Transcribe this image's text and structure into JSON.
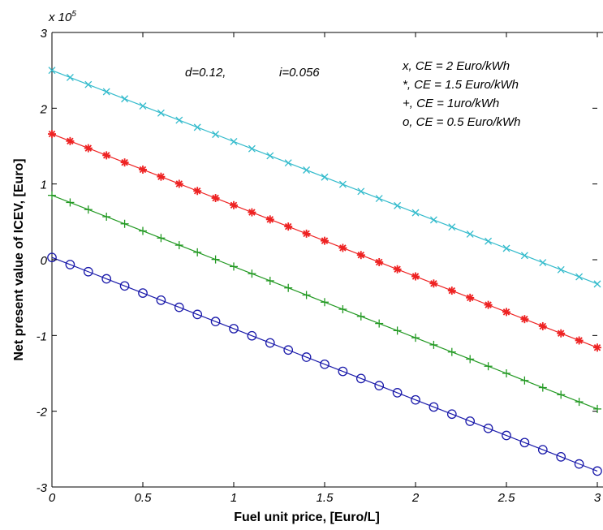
{
  "chart_data": {
    "type": "line",
    "xlabel": "Fuel unit price, [Euro/L]",
    "ylabel": "Net present value of ICEV, [Euro]",
    "xlim": [
      0,
      3
    ],
    "ylim": [
      -3,
      3
    ],
    "y_exponent_label": "x 10",
    "y_exponent_power": "5",
    "x_ticks": [
      0,
      0.5,
      1,
      1.5,
      2,
      2.5,
      3
    ],
    "x_tick_labels": [
      "0",
      "0.5",
      "1",
      "1.5",
      "2",
      "2.5",
      "3"
    ],
    "y_ticks": [
      -3,
      -2,
      -1,
      0,
      1,
      2,
      3
    ],
    "y_tick_labels": [
      "-3",
      "-2",
      "-1",
      "0",
      "1",
      "2",
      "3"
    ],
    "grid": false,
    "x": [
      0,
      0.1,
      0.2,
      0.3,
      0.4,
      0.5,
      0.6,
      0.7,
      0.8,
      0.9,
      1.0,
      1.1,
      1.2,
      1.3,
      1.4,
      1.5,
      1.6,
      1.7,
      1.8,
      1.9,
      2.0,
      2.1,
      2.2,
      2.3,
      2.4,
      2.5,
      2.6,
      2.7,
      2.8,
      2.9,
      3.0
    ],
    "series": [
      {
        "marker": "x",
        "color": "#33BBCC",
        "start": 2.5,
        "end": -0.32
      },
      {
        "marker": "*",
        "color": "#EE2222",
        "start": 1.66,
        "end": -1.16
      },
      {
        "marker": "+",
        "color": "#229922",
        "start": 0.85,
        "end": -1.97
      },
      {
        "marker": "o",
        "color": "#1A1AAA",
        "start": 0.03,
        "end": -2.79
      }
    ],
    "annotations": {
      "params_d": "d=0.12,",
      "params_i": "i=0.056",
      "legend_lines": [
        "x, CE = 2 Euro/kWh",
        "*, CE = 1.5 Euro/kWh",
        "+, CE = 1uro/kWh",
        "o, CE = 0.5 Euro/kWh"
      ]
    }
  }
}
